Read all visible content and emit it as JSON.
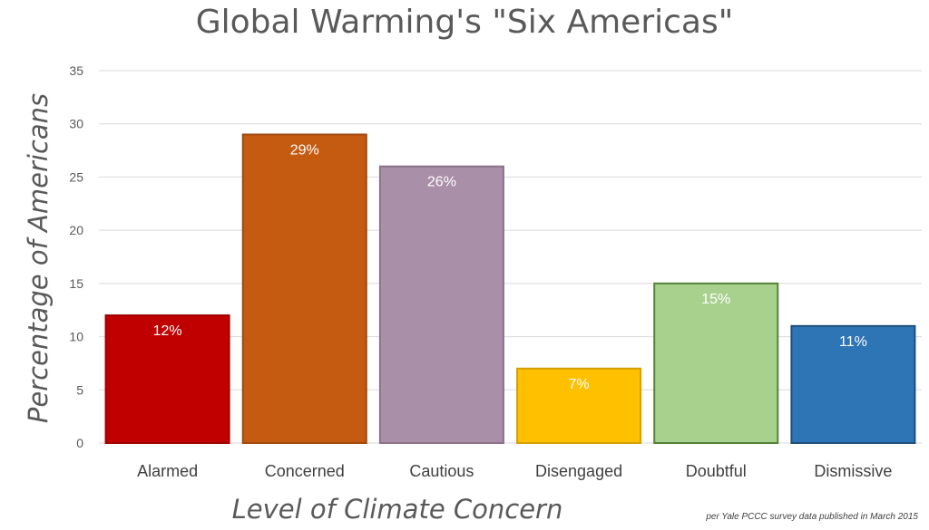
{
  "chart_data": {
    "type": "bar",
    "title": "Global Warming's \"Six Americas\"",
    "xlabel": "Level of Climate Concern",
    "ylabel": "Percentage of Americans",
    "note": "per Yale PCCC survey data published in March 2015",
    "categories": [
      "Alarmed",
      "Concerned",
      "Cautious",
      "Disengaged",
      "Doubtful",
      "Dismissive"
    ],
    "values": [
      12,
      29,
      26,
      7,
      15,
      11
    ],
    "data_labels": [
      "12%",
      "29%",
      "26%",
      "7%",
      "15%",
      "11%"
    ],
    "ylim": [
      0,
      35
    ],
    "yticks": [
      0,
      5,
      10,
      15,
      20,
      25,
      30,
      35
    ],
    "grid": true,
    "colors": {
      "fill": [
        "#C00000",
        "#C55A11",
        "#A98FA8",
        "#FFC000",
        "#A9D18E",
        "#2E75B6"
      ],
      "stroke": [
        "#A00000",
        "#A04A0E",
        "#8A7389",
        "#D4A000",
        "#548235",
        "#1F4E79"
      ],
      "grid": "#d9d9d9",
      "text": "#595959"
    }
  }
}
